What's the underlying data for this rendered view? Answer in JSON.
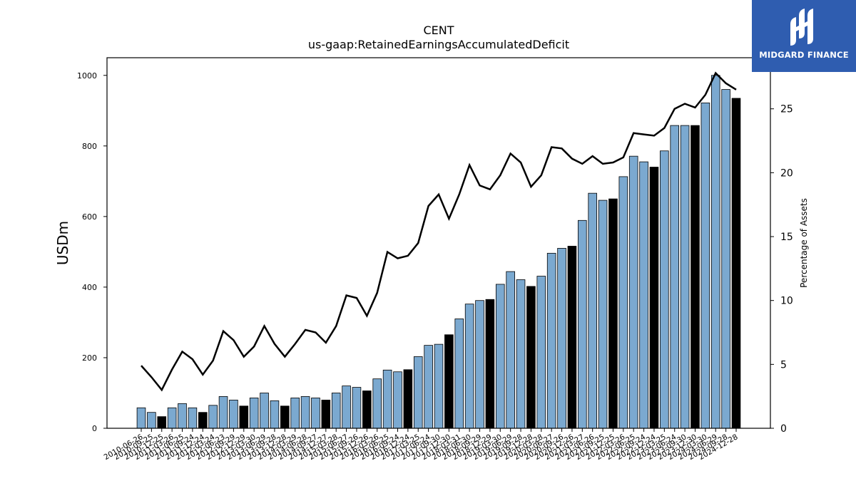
{
  "chart_data": {
    "type": "bar",
    "title": "CENT",
    "subtitle": "us-gaap:RetainedEarningsAccumulatedDeficit",
    "ylabel": "USDm",
    "ylabel_right": "Percentage of Assets",
    "ylim": [
      0,
      1050
    ],
    "ylim_right": [
      0,
      29
    ],
    "y_ticks": [
      "0",
      "200",
      "400",
      "600",
      "800",
      "1000"
    ],
    "y_ticks_right": [
      "0",
      "5",
      "10",
      "15",
      "20",
      "25"
    ],
    "grid": false,
    "categories": [
      "2010-06-26",
      "2010-09-25",
      "2010-12-25",
      "2011-03-26",
      "2011-06-25",
      "2011-09-24",
      "2011-12-24",
      "2012-03-24",
      "2012-06-23",
      "2012-09-29",
      "2012-12-29",
      "2013-03-30",
      "2013-06-29",
      "2013-09-28",
      "2013-12-28",
      "2014-03-29",
      "2014-06-28",
      "2014-09-27",
      "2014-12-27",
      "2015-03-28",
      "2015-06-27",
      "2015-09-26",
      "2015-12-26",
      "2016-03-26",
      "2016-06-25",
      "2016-09-24",
      "2016-12-24",
      "2017-03-25",
      "2017-06-24",
      "2017-09-30",
      "2017-12-30",
      "2018-03-31",
      "2018-06-30",
      "2018-09-29",
      "2018-12-29",
      "2019-03-30",
      "2019-06-29",
      "2019-09-28",
      "2019-12-28",
      "2020-03-28",
      "2020-06-27",
      "2020-09-26",
      "2020-12-26",
      "2021-03-27",
      "2021-06-26",
      "2021-09-25",
      "2021-12-25",
      "2022-03-26",
      "2022-06-25",
      "2022-09-24",
      "2022-12-24",
      "2023-03-25",
      "2023-06-24",
      "2023-09-30",
      "2023-12-30",
      "2024-03-30",
      "2024-06-29",
      "2024-09-28",
      "2024-12-28"
    ],
    "x_tick_labels": [
      "2010-06-26",
      "2010-09-25",
      "2010-12-25",
      "2011-03-26",
      "2011-06-25",
      "2011-09-24",
      "2011-12-24",
      "2012-03-24",
      "2012-06-23",
      "2012-09-29",
      "2012-12-29",
      "2013-03-30",
      "2013-06-29",
      "2013-09-28",
      "2013-12-28",
      "2014-03-29",
      "2014-06-28",
      "2014-09-27",
      "2014-12-27",
      "2015-03-28",
      "2015-06-27",
      "2015-09-26",
      "2015-12-26",
      "2016-03-26",
      "2016-06-25",
      "2016-09-24",
      "2016-12-24",
      "2017-03-25",
      "2017-06-24",
      "2017-09-30",
      "2017-12-30",
      "2018-03-31",
      "2018-06-30",
      "2018-09-29",
      "2018-12-29",
      "2019-03-30",
      "2019-06-29",
      "2019-09-28",
      "2019-12-28",
      "2020-03-28",
      "2020-06-27",
      "2020-09-26",
      "2020-12-26",
      "2021-03-27",
      "2021-06-26",
      "2021-09-25",
      "2021-12-25",
      "2022-03-26",
      "2022-06-25",
      "2022-09-24",
      "2022-12-24",
      "2023-03-25",
      "2023-06-24",
      "2023-09-30",
      "2023-12-30",
      "2024-03-30",
      "2024-06-29",
      "2024-09-28",
      "2024-12-28"
    ],
    "bar_values": [
      58,
      45,
      33,
      58,
      70,
      58,
      45,
      65,
      90,
      80,
      63,
      86,
      100,
      78,
      63,
      86,
      90,
      86,
      80,
      100,
      120,
      116,
      106,
      140,
      165,
      160,
      166,
      203,
      235,
      238,
      265,
      310,
      352,
      362,
      365,
      408,
      444,
      421,
      402,
      431,
      496,
      510,
      516,
      589,
      666,
      646,
      650,
      713,
      771,
      755,
      740,
      786,
      858,
      858,
      858,
      922,
      1000,
      960,
      935
    ],
    "bar_fiscal_year_end": [
      false,
      false,
      true,
      false,
      false,
      false,
      true,
      false,
      false,
      false,
      true,
      false,
      false,
      false,
      true,
      false,
      false,
      false,
      true,
      false,
      false,
      false,
      true,
      false,
      false,
      false,
      true,
      false,
      false,
      false,
      true,
      false,
      false,
      false,
      true,
      false,
      false,
      false,
      true,
      false,
      false,
      false,
      true,
      false,
      false,
      false,
      true,
      false,
      false,
      false,
      true,
      false,
      false,
      false,
      true,
      false,
      false,
      false,
      true
    ],
    "line_values": [
      4.9,
      4.0,
      3.0,
      4.6,
      6.0,
      5.4,
      4.2,
      5.3,
      7.6,
      6.9,
      5.6,
      6.4,
      8.0,
      6.6,
      5.6,
      6.6,
      7.7,
      7.5,
      6.7,
      8.0,
      10.4,
      10.2,
      8.8,
      10.6,
      13.8,
      13.3,
      13.5,
      14.5,
      17.4,
      18.3,
      16.4,
      18.3,
      20.6,
      19.0,
      18.7,
      19.8,
      21.5,
      20.8,
      18.9,
      19.8,
      22.0,
      21.9,
      21.1,
      20.7,
      21.3,
      20.7,
      20.8,
      21.2,
      23.1,
      23.0,
      22.9,
      23.5,
      25.0,
      25.4,
      25.1,
      26.1,
      27.8,
      27.0,
      26.5
    ],
    "colors": {
      "bar": "#7ba9d0",
      "bar_highlight": "#000000",
      "line": "#000000"
    }
  },
  "logo": {
    "text": "MIDGARD FINANCE",
    "background": "#2f5db0"
  }
}
